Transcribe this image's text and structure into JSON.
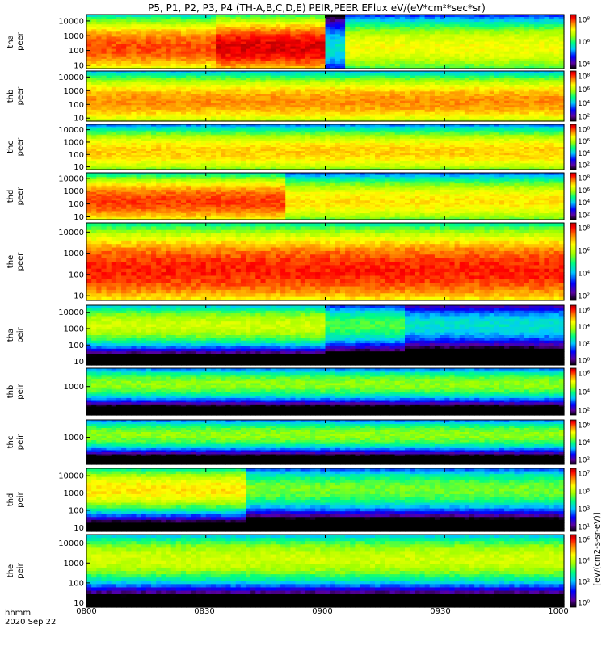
{
  "chart_data": {
    "type": "heatmap",
    "title": "P5, P1, P2, P3, P4 (TH-A,B,C,D,E) PEIR,PEER EFlux eV/(eV*cm²*sec*sr)",
    "xlabel_line1": "hhmm",
    "xlabel_line2": "2020 Sep 22",
    "x_ticks": [
      "0800",
      "0830",
      "0900",
      "0930",
      "1000"
    ],
    "x_range_minutes": [
      480,
      600
    ],
    "colorbar_label": "[eV/(cm2-s-sr-eV)]",
    "colorbar_tick_labels": [
      "10⁸",
      "10⁷",
      "10⁶",
      "10⁵",
      "10⁴",
      "10³",
      "10²",
      "10¹",
      "10⁰"
    ],
    "colorscale": [
      "#000000",
      "#5a00a0",
      "#0000ff",
      "#00c8ff",
      "#00ff80",
      "#a0ff00",
      "#ffff00",
      "#ff8000",
      "#ff0000",
      "#b00000"
    ],
    "panels": [
      {
        "probe": "tha",
        "product": "peer",
        "y_ticks": [
          "10000",
          "1000",
          "100",
          "10"
        ],
        "y_range_ev": [
          6,
          27000
        ],
        "log_scale": true,
        "cb_ticks": [
          "10⁸",
          "10⁶",
          "10⁴"
        ],
        "regime": [
          [
            480,
            512,
            7.5
          ],
          [
            512,
            540,
            8.2
          ],
          [
            540,
            545,
            3.5
          ],
          [
            545,
            600,
            6.0
          ]
        ]
      },
      {
        "probe": "thb",
        "product": "peer",
        "y_ticks": [
          "10000",
          "1000",
          "100",
          "10"
        ],
        "y_range_ev": [
          6,
          27000
        ],
        "log_scale": true,
        "cb_ticks": [
          "10⁸",
          "10⁶",
          "10⁴",
          "10²"
        ],
        "regime": [
          [
            480,
            600,
            7.0
          ]
        ]
      },
      {
        "probe": "thc",
        "product": "peer",
        "y_ticks": [
          "10000",
          "1000",
          "100",
          "10"
        ],
        "y_range_ev": [
          6,
          27000
        ],
        "log_scale": true,
        "cb_ticks": [
          "10⁸",
          "10⁶",
          "10⁴",
          "10²"
        ],
        "regime": [
          [
            480,
            600,
            6.5
          ]
        ]
      },
      {
        "probe": "thd",
        "product": "peer",
        "y_ticks": [
          "10000",
          "1000",
          "100",
          "10"
        ],
        "y_range_ev": [
          6,
          27000
        ],
        "log_scale": true,
        "cb_ticks": [
          "10⁸",
          "10⁶",
          "10⁴",
          "10²"
        ],
        "regime": [
          [
            480,
            530,
            7.6
          ],
          [
            530,
            600,
            6.3
          ]
        ]
      },
      {
        "probe": "the",
        "product": "peer",
        "y_ticks": [
          "10000",
          "1000",
          "100",
          "10"
        ],
        "y_range_ev": [
          6,
          27000
        ],
        "log_scale": true,
        "cb_ticks": [
          "10⁸",
          "10⁶",
          "10⁴",
          "10²"
        ],
        "regime": [
          [
            480,
            600,
            7.8
          ]
        ]
      },
      {
        "probe": "tha",
        "product": "peir",
        "y_ticks": [
          "10000",
          "1000",
          "100",
          "10"
        ],
        "y_range_ev": [
          6,
          27000
        ],
        "log_scale": true,
        "cb_ticks": [
          "10⁶",
          "10⁴",
          "10²",
          "10⁰"
        ],
        "regime": [
          [
            480,
            540,
            5.6
          ],
          [
            540,
            560,
            4.5
          ],
          [
            560,
            600,
            3.5
          ]
        ]
      },
      {
        "probe": "thb",
        "product": "peir",
        "y_ticks": [
          "1000"
        ],
        "y_range_ev": [
          6,
          27000
        ],
        "log_scale": true,
        "cb_ticks": [
          "10⁶",
          "10⁴",
          "10²"
        ],
        "regime": [
          [
            480,
            600,
            5.0
          ]
        ]
      },
      {
        "probe": "thc",
        "product": "peir",
        "y_ticks": [
          "1000"
        ],
        "y_range_ev": [
          6,
          27000
        ],
        "log_scale": true,
        "cb_ticks": [
          "10⁶",
          "10⁴",
          "10²"
        ],
        "regime": [
          [
            480,
            600,
            5.0
          ]
        ]
      },
      {
        "probe": "thd",
        "product": "peir",
        "y_ticks": [
          "10000",
          "1000",
          "100",
          "10"
        ],
        "y_range_ev": [
          6,
          27000
        ],
        "log_scale": true,
        "cb_ticks": [
          "10⁷",
          "10⁵",
          "10³",
          "10¹"
        ],
        "regime": [
          [
            480,
            520,
            6.3
          ],
          [
            520,
            600,
            4.8
          ]
        ]
      },
      {
        "probe": "the",
        "product": "peir",
        "y_ticks": [
          "10000",
          "1000",
          "100",
          "10"
        ],
        "y_range_ev": [
          6,
          27000
        ],
        "log_scale": true,
        "cb_ticks": [
          "10⁶",
          "10⁴",
          "10²",
          "10⁰"
        ],
        "regime": [
          [
            480,
            600,
            5.6
          ]
        ]
      }
    ]
  }
}
